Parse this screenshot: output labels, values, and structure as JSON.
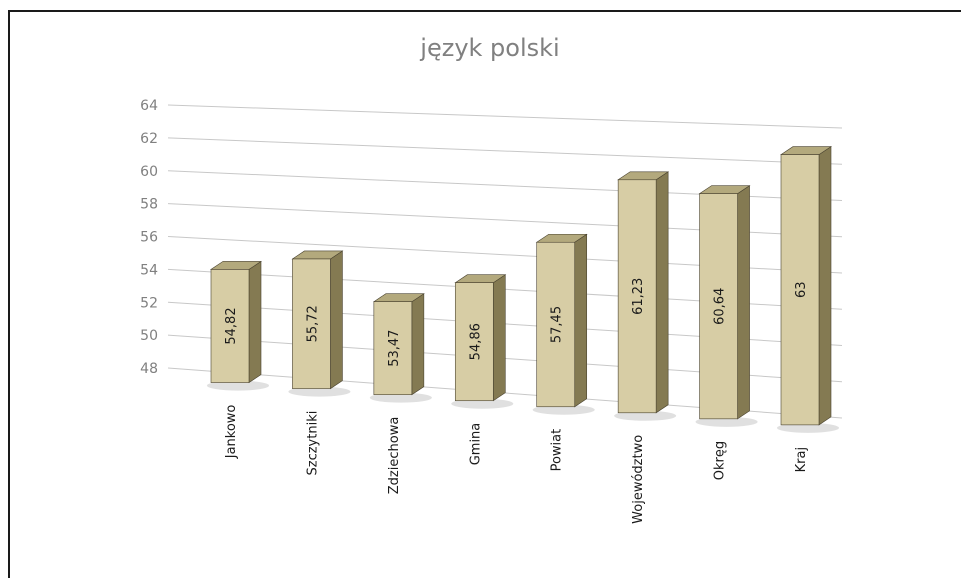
{
  "chart_data": {
    "type": "bar",
    "title": "język polski",
    "categories": [
      "Jankowo",
      "Szczytniki",
      "Zdziechowa",
      "Gmina",
      "Powiat",
      "Województwo",
      "Okręg",
      "Kraj"
    ],
    "values": [
      54.82,
      55.72,
      53.47,
      54.86,
      57.45,
      61.23,
      60.64,
      63
    ],
    "value_labels": [
      "54,82",
      "55,72",
      "53,47",
      "54,86",
      "57,45",
      "61,23",
      "60,64",
      "63"
    ],
    "yticks": [
      "48",
      "50",
      "52",
      "54",
      "56",
      "58",
      "60",
      "62",
      "64"
    ],
    "ylim": [
      48,
      64
    ],
    "grid": true,
    "legend": "none",
    "style": "3d-columns",
    "colors": {
      "bar_front": "#d7cda5",
      "bar_side": "#847a52",
      "bar_top": "#b3a97d",
      "gridline": "#c8c8c8",
      "text": "#808080"
    }
  }
}
